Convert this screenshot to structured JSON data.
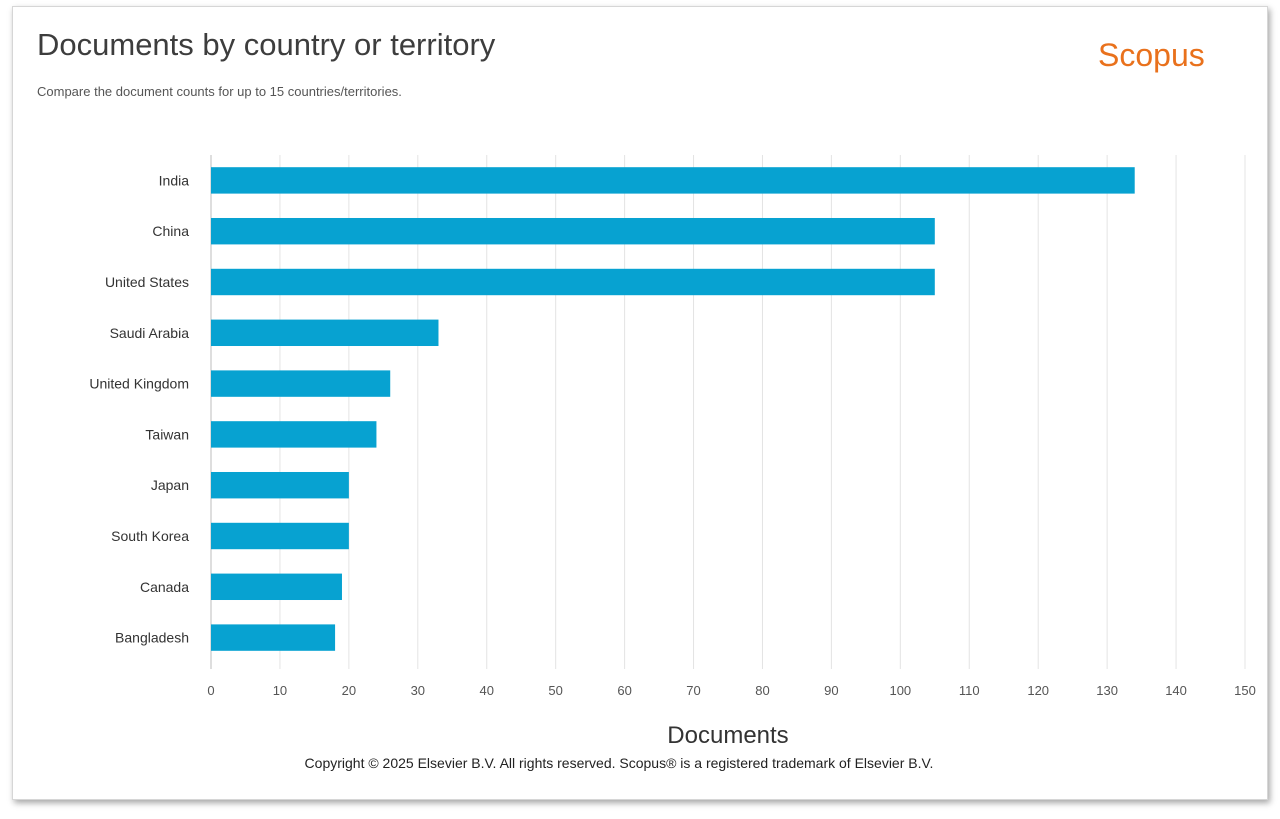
{
  "header": {
    "title": "Documents by country or territory",
    "subtitle": "Compare the document counts for up to 15 countries/territories.",
    "brand": "Scopus"
  },
  "footer": {
    "copyright": "Copyright © 2025 Elsevier B.V. All rights reserved. Scopus® is a registered trademark of Elsevier B.V."
  },
  "colors": {
    "bar": "#07a2d1",
    "brand": "#e9711c",
    "grid": "#e4e4e4"
  },
  "chart_data": {
    "type": "bar",
    "orientation": "horizontal",
    "categories": [
      "India",
      "China",
      "United States",
      "Saudi Arabia",
      "United Kingdom",
      "Taiwan",
      "Japan",
      "South Korea",
      "Canada",
      "Bangladesh"
    ],
    "values": [
      134,
      105,
      105,
      33,
      26,
      24,
      20,
      20,
      19,
      18
    ],
    "xlabel": "Documents",
    "xlim": [
      0,
      150
    ],
    "xticks": [
      0,
      10,
      20,
      30,
      40,
      50,
      60,
      70,
      80,
      90,
      100,
      110,
      120,
      130,
      140,
      150
    ],
    "grid": true,
    "legend": "none"
  }
}
